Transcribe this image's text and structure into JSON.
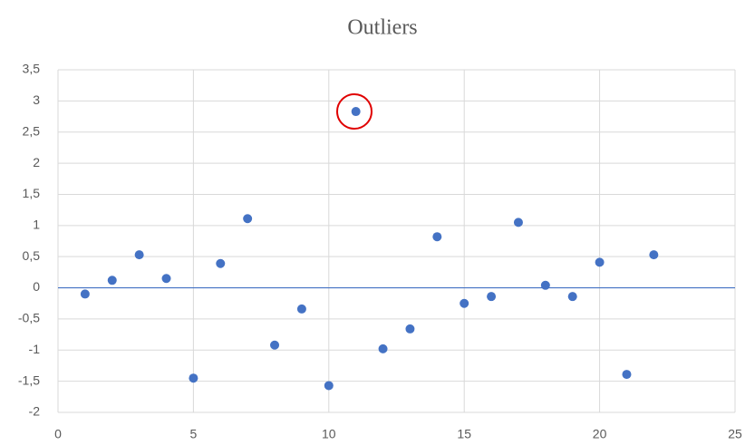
{
  "chart_data": {
    "type": "scatter",
    "title": "Outliers",
    "series": [
      {
        "color": "#4472c4",
        "x": [
          1,
          2,
          3,
          4,
          5,
          6,
          7,
          8,
          9,
          10,
          11,
          12,
          13,
          14,
          15,
          16,
          17,
          18,
          19,
          20,
          21,
          22
        ],
        "values": [
          -0.1,
          0.12,
          0.53,
          0.15,
          -1.45,
          0.39,
          1.11,
          -0.92,
          -0.34,
          -1.57,
          2.83,
          -0.98,
          -0.66,
          0.82,
          -0.25,
          -0.14,
          1.05,
          0.04,
          -0.14,
          0.41,
          -1.39,
          0.53
        ]
      }
    ],
    "xlim": [
      0,
      25
    ],
    "xticks": [
      0,
      5,
      10,
      15,
      20,
      25
    ],
    "ylim": [
      -2,
      3.5
    ],
    "yticks": [
      {
        "value": -2,
        "label": "-2"
      },
      {
        "value": -1.5,
        "label": "-1,5"
      },
      -1,
      {
        "value": -0.5,
        "label": "-0,5"
      },
      0,
      {
        "value": 0.5,
        "label": "0,5"
      },
      1,
      {
        "value": 1.5,
        "label": "1,5"
      },
      2,
      {
        "value": 2.5,
        "label": "2,5"
      },
      3,
      {
        "value": 3.5,
        "label": "3,5"
      }
    ],
    "grid": true
  }
}
